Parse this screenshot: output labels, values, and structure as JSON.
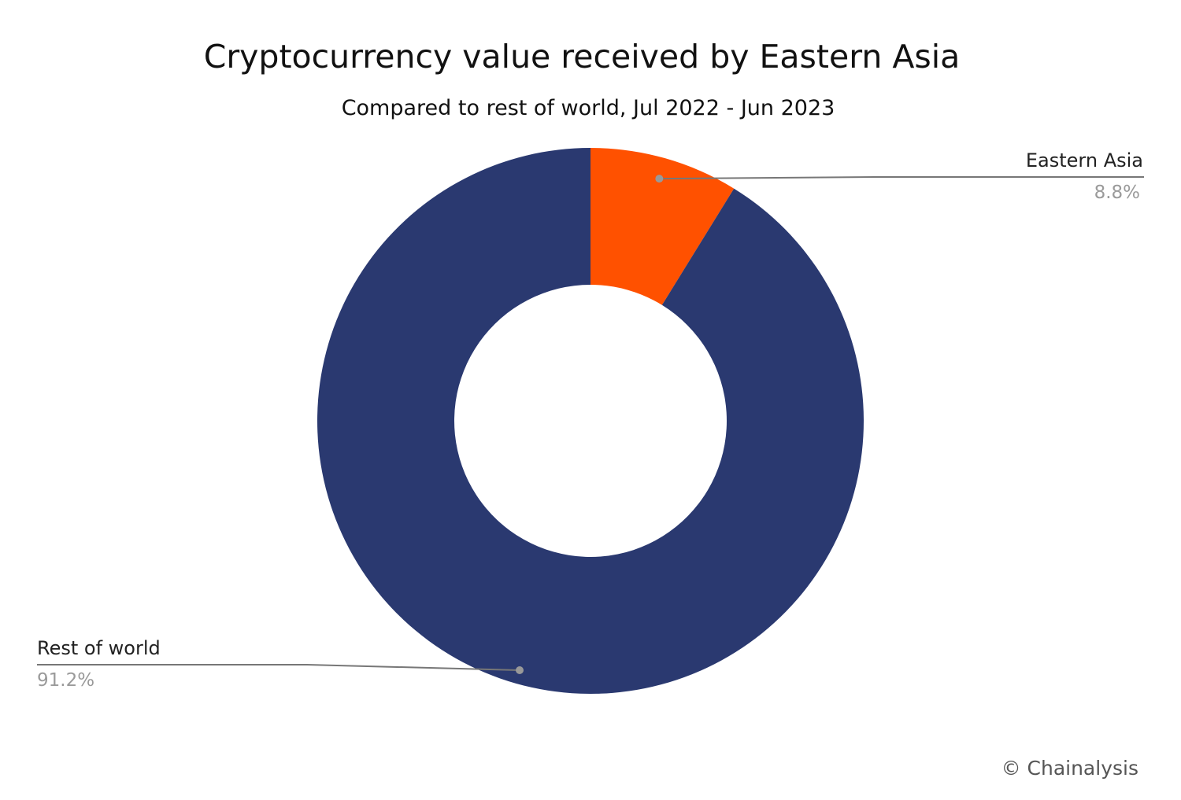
{
  "chart_data": {
    "type": "pie",
    "variant": "donut",
    "title": "Cryptocurrency value received by Eastern Asia",
    "subtitle": "Compared to rest of world, Jul 2022 - Jun 2023",
    "slices": [
      {
        "label": "Eastern Asia",
        "value": 8.8,
        "value_label": "8.8%",
        "color": "#ff5100"
      },
      {
        "label": "Rest of world",
        "value": 91.2,
        "value_label": "91.2%",
        "color": "#2a3970"
      }
    ],
    "legend": "none",
    "credit": "© Chainalysis"
  }
}
